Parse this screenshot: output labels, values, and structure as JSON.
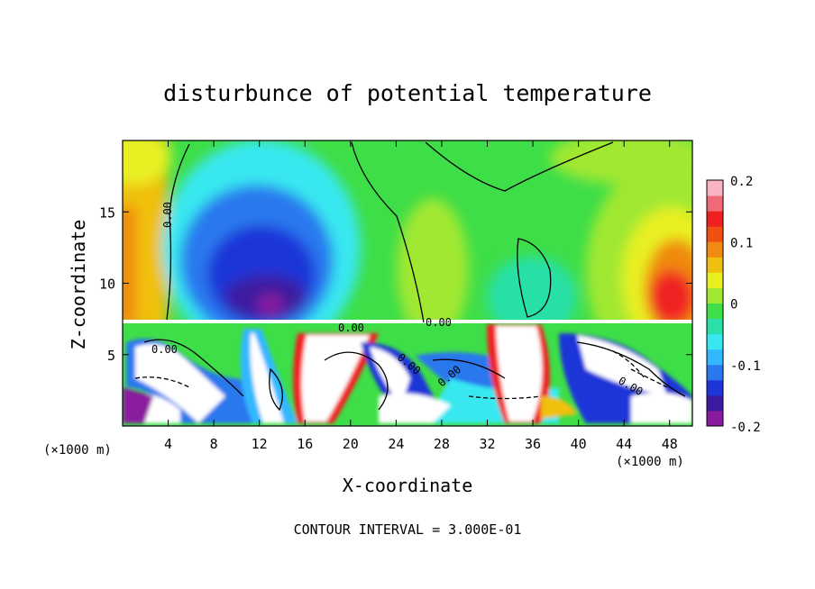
{
  "chart_data": {
    "type": "heatmap",
    "title": "disturbunce of potential temperature",
    "xlabel": "X-coordinate",
    "ylabel": "Z-coordinate",
    "x_unit_label_left": "(×1000 m)",
    "x_unit_label_right": "(×1000 m)",
    "xlim": [
      0,
      50
    ],
    "ylim": [
      0,
      20
    ],
    "x_ticks": [
      "4",
      "8",
      "12",
      "16",
      "20",
      "24",
      "28",
      "32",
      "36",
      "40",
      "44",
      "48"
    ],
    "y_ticks": [
      "5",
      "10",
      "15"
    ],
    "colorbar": {
      "range": [
        -0.2,
        0.2
      ],
      "tick_labels": [
        "0.2",
        "0.1",
        "0",
        "-0.1",
        "-0.2"
      ],
      "colors": [
        "#8a1a9e",
        "#3e1aa0",
        "#1f35d8",
        "#2a78ee",
        "#33b8ff",
        "#38e8f0",
        "#28e0a8",
        "#3ede48",
        "#a0e830",
        "#e8f020",
        "#f0c010",
        "#f08a10",
        "#f05010",
        "#f02020",
        "#f06a78",
        "#f8b4c0"
      ]
    },
    "contour_labels": [
      "0.00",
      "0.00",
      "0.00",
      "0.00",
      "0.00",
      "0.00",
      "0.00"
    ],
    "footer": "CONTOUR INTERVAL = 3.000E-01"
  }
}
